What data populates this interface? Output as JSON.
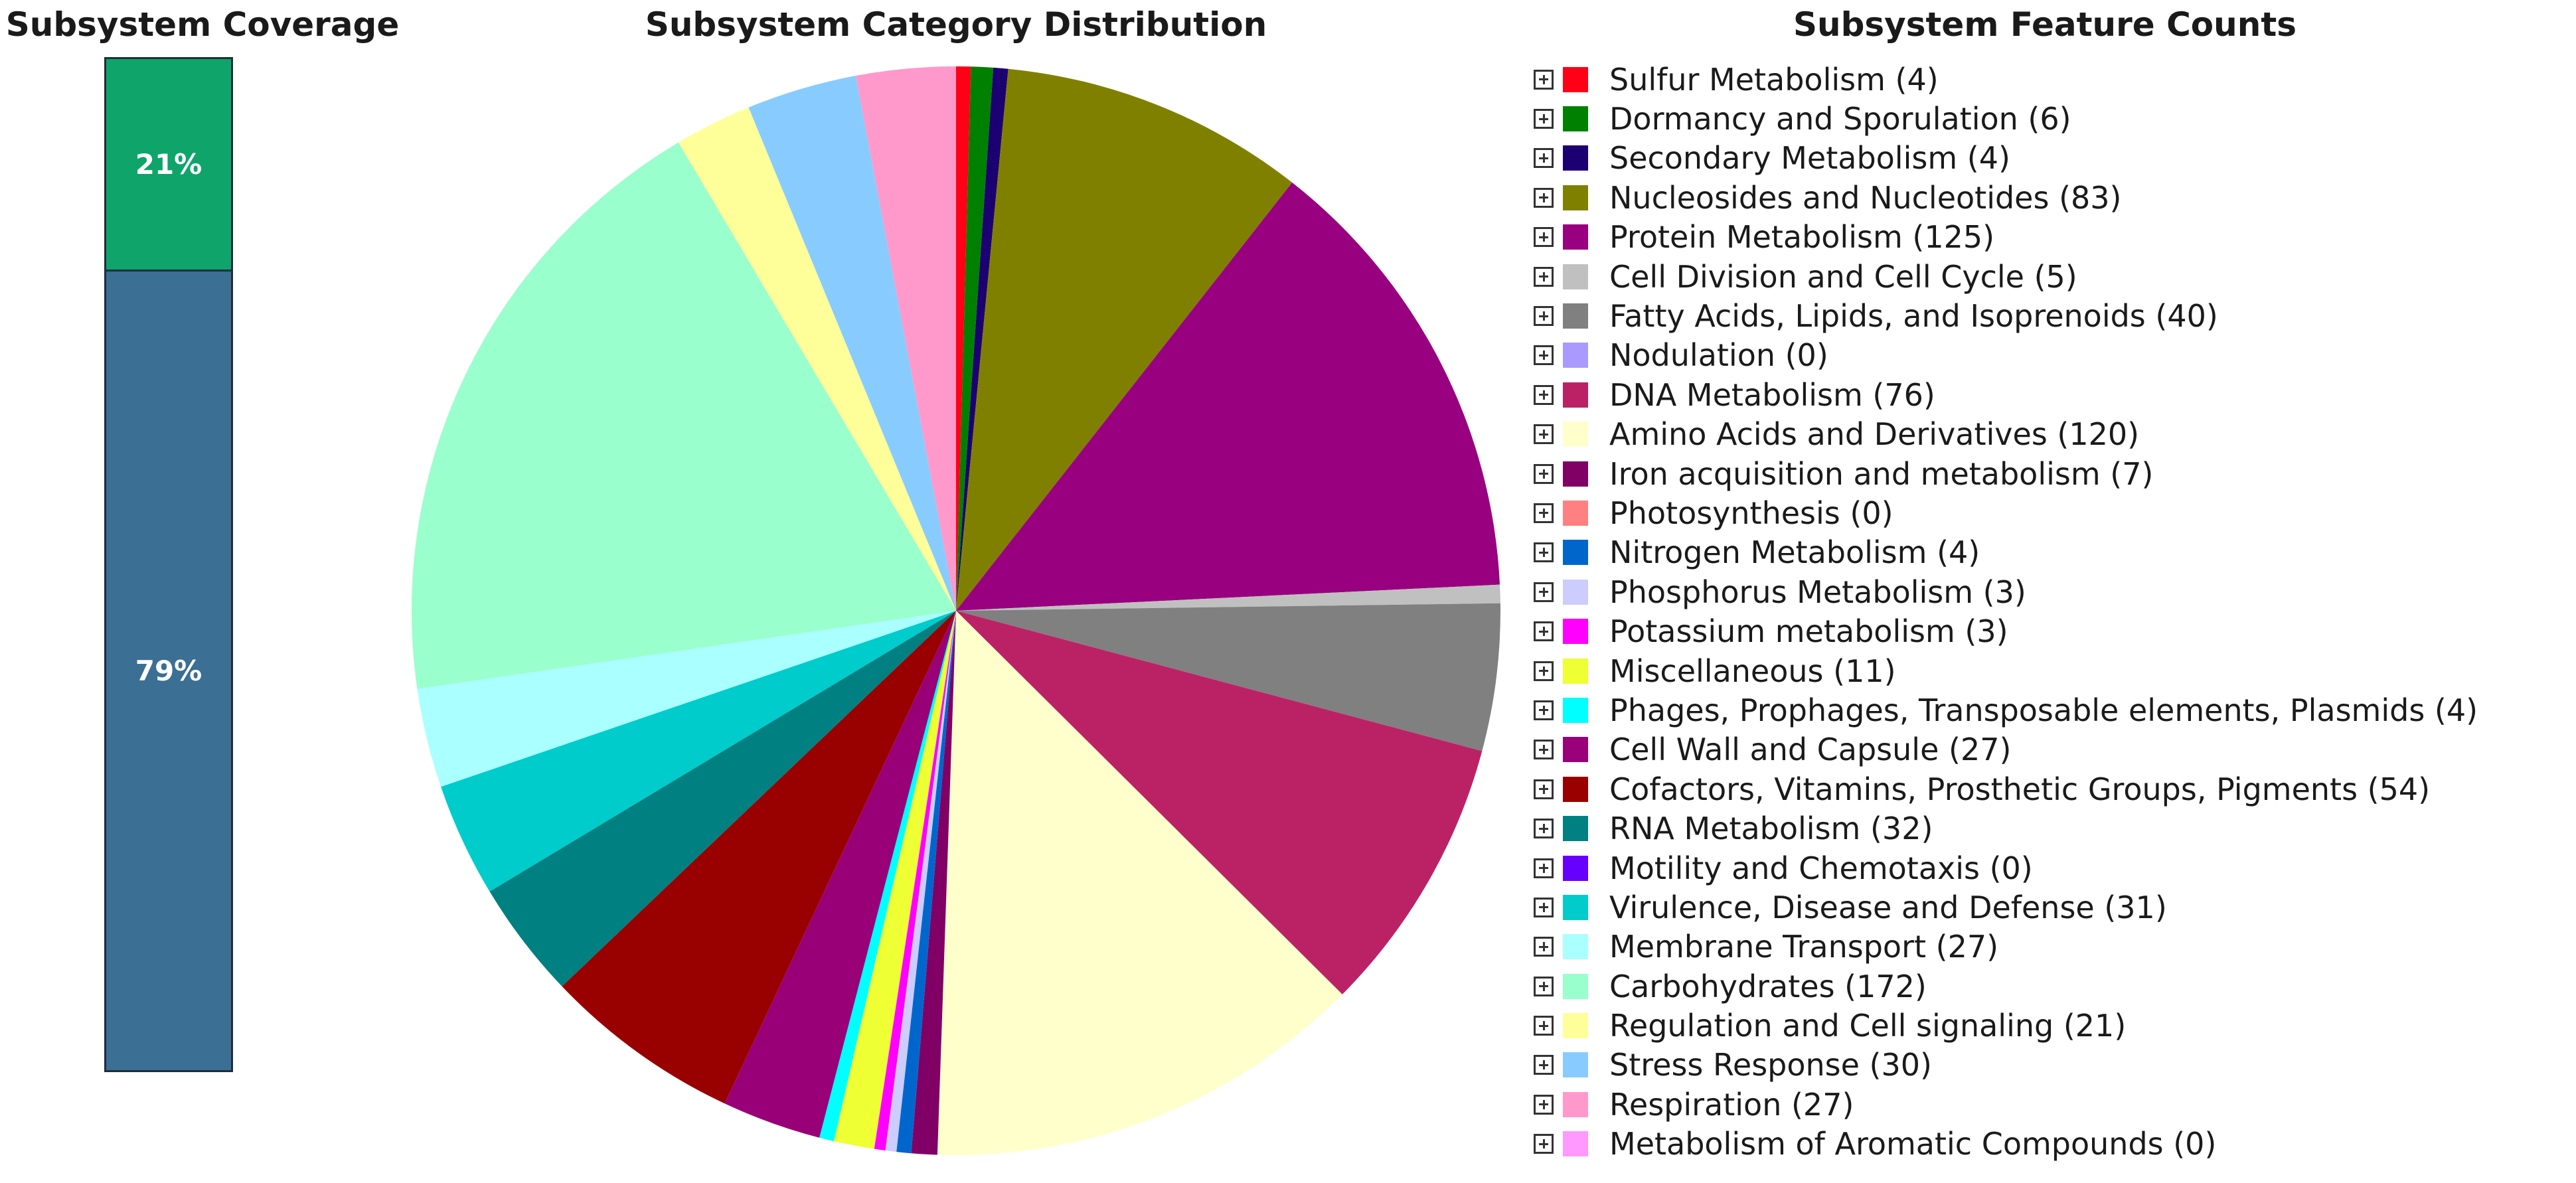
{
  "chart_data": [
    {
      "type": "bar",
      "title": "Subsystem Coverage",
      "stacked": true,
      "series": [
        {
          "name": "",
          "value": 21,
          "label": "21%",
          "color": "#0ea46a"
        },
        {
          "name": "",
          "value": 79,
          "label": "79%",
          "color": "#3b6f94"
        }
      ]
    },
    {
      "type": "pie",
      "title": "Subsystem Category Distribution",
      "slices": [
        {
          "label": "Sulfur Metabolism",
          "value": 4,
          "color": "#ff0016"
        },
        {
          "label": "Dormancy and Sporulation",
          "value": 6,
          "color": "#008000"
        },
        {
          "label": "Secondary Metabolism",
          "value": 4,
          "color": "#1c0072"
        },
        {
          "label": "Nucleosides and Nucleotides",
          "value": 83,
          "color": "#808000"
        },
        {
          "label": "Protein Metabolism",
          "value": 125,
          "color": "#990080"
        },
        {
          "label": "Cell Division and Cell Cycle",
          "value": 5,
          "color": "#c0c0c0"
        },
        {
          "label": "Fatty Acids, Lipids, and Isoprenoids",
          "value": 40,
          "color": "#808080"
        },
        {
          "label": "Nodulation",
          "value": 0,
          "color": "#aa99ff"
        },
        {
          "label": "DNA Metabolism",
          "value": 76,
          "color": "#bb2266"
        },
        {
          "label": "Amino Acids and Derivatives",
          "value": 120,
          "color": "#ffffcc"
        },
        {
          "label": "Iron acquisition and metabolism",
          "value": 7,
          "color": "#800066"
        },
        {
          "label": "Photosynthesis",
          "value": 0,
          "color": "#ff8080"
        },
        {
          "label": "Nitrogen Metabolism",
          "value": 4,
          "color": "#0066cc"
        },
        {
          "label": "Phosphorus Metabolism",
          "value": 3,
          "color": "#ccccff"
        },
        {
          "label": "Potassium metabolism",
          "value": 3,
          "color": "#ff00ff"
        },
        {
          "label": "Miscellaneous",
          "value": 11,
          "color": "#eeff33"
        },
        {
          "label": "Phages, Prophages, Transposable elements, Plasmids",
          "value": 4,
          "color": "#00ffff"
        },
        {
          "label": "Cell Wall and Capsule",
          "value": 27,
          "color": "#990077"
        },
        {
          "label": "Cofactors, Vitamins, Prosthetic Groups, Pigments",
          "value": 54,
          "color": "#990000"
        },
        {
          "label": "RNA Metabolism",
          "value": 32,
          "color": "#008080"
        },
        {
          "label": "Motility and Chemotaxis",
          "value": 0,
          "color": "#6600ff"
        },
        {
          "label": "Virulence, Disease and Defense",
          "value": 31,
          "color": "#00cccc"
        },
        {
          "label": "Membrane Transport",
          "value": 27,
          "color": "#aaffff"
        },
        {
          "label": "Carbohydrates",
          "value": 172,
          "color": "#99ffcc"
        },
        {
          "label": "Regulation and Cell signaling",
          "value": 21,
          "color": "#ffff99"
        },
        {
          "label": "Stress Response",
          "value": 30,
          "color": "#88ccff"
        },
        {
          "label": "Respiration",
          "value": 27,
          "color": "#ff99cc"
        },
        {
          "label": "Metabolism of Aromatic Compounds",
          "value": 0,
          "color": "#ff99ff"
        }
      ]
    }
  ],
  "legend": {
    "title": "Subsystem Feature Counts",
    "items": [
      {
        "text": "Sulfur Metabolism (4)",
        "color": "#ff0016"
      },
      {
        "text": "Dormancy and Sporulation (6)",
        "color": "#008000"
      },
      {
        "text": "Secondary Metabolism (4)",
        "color": "#1c0072"
      },
      {
        "text": "Nucleosides and Nucleotides (83)",
        "color": "#808000"
      },
      {
        "text": "Protein Metabolism (125)",
        "color": "#990080"
      },
      {
        "text": "Cell Division and Cell Cycle (5)",
        "color": "#c0c0c0"
      },
      {
        "text": "Fatty Acids, Lipids, and Isoprenoids (40)",
        "color": "#808080"
      },
      {
        "text": "Nodulation (0)",
        "color": "#aa99ff"
      },
      {
        "text": "DNA Metabolism (76)",
        "color": "#bb2266"
      },
      {
        "text": "Amino Acids and Derivatives (120)",
        "color": "#ffffcc"
      },
      {
        "text": "Iron acquisition and metabolism (7)",
        "color": "#800066"
      },
      {
        "text": "Photosynthesis (0)",
        "color": "#ff8080"
      },
      {
        "text": "Nitrogen Metabolism (4)",
        "color": "#0066cc"
      },
      {
        "text": "Phosphorus Metabolism (3)",
        "color": "#ccccff"
      },
      {
        "text": "Potassium metabolism (3)",
        "color": "#ff00ff"
      },
      {
        "text": "Miscellaneous (11)",
        "color": "#eeff33"
      },
      {
        "text": "Phages, Prophages, Transposable elements, Plasmids (4)",
        "color": "#00ffff"
      },
      {
        "text": "Cell Wall and Capsule (27)",
        "color": "#990077"
      },
      {
        "text": "Cofactors, Vitamins, Prosthetic Groups, Pigments (54)",
        "color": "#990000"
      },
      {
        "text": "RNA Metabolism (32)",
        "color": "#008080"
      },
      {
        "text": "Motility and Chemotaxis (0)",
        "color": "#6600ff"
      },
      {
        "text": "Virulence, Disease and Defense (31)",
        "color": "#00cccc"
      },
      {
        "text": "Membrane Transport (27)",
        "color": "#aaffff"
      },
      {
        "text": "Carbohydrates (172)",
        "color": "#99ffcc"
      },
      {
        "text": "Regulation and Cell signaling (21)",
        "color": "#ffff99"
      },
      {
        "text": "Stress Response (30)",
        "color": "#88ccff"
      },
      {
        "text": "Respiration (27)",
        "color": "#ff99cc"
      },
      {
        "text": "Metabolism of Aromatic Compounds (0)",
        "color": "#ff99ff"
      }
    ]
  }
}
